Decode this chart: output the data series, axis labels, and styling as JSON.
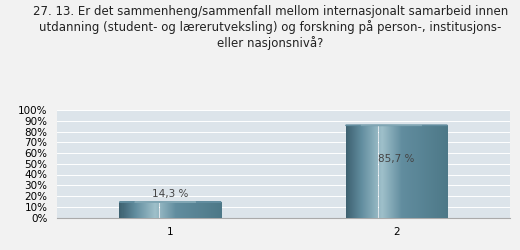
{
  "title_line1": "27. 13. Er det sammenheng/sammenfall mellom internasjonalt samarbeid innen",
  "title_line2": "utdanning (student- og lærerutveksling) og forskning på person-, institusjons-",
  "title_line3": "eller nasjonsnivå?",
  "categories": [
    "1",
    "2"
  ],
  "values": [
    14.3,
    85.7
  ],
  "labels": [
    "14,3 %",
    "85,7 %"
  ],
  "bar_color_left": "#3d6070",
  "bar_color_center": "#8ab0bc",
  "bar_color_mid": "#5f8595",
  "bar_color_right": "#4a7585",
  "background_color": "#dce4ea",
  "fig_background": "#f2f2f2",
  "ylim": [
    0,
    100
  ],
  "ytick_labels": [
    "0%",
    "10%",
    "20%",
    "30%",
    "40%",
    "50%",
    "60%",
    "70%",
    "80%",
    "90%",
    "100%"
  ],
  "ytick_values": [
    0,
    10,
    20,
    30,
    40,
    50,
    60,
    70,
    80,
    90,
    100
  ],
  "title_fontsize": 8.5,
  "tick_fontsize": 7.5,
  "label_fontsize": 7.5
}
